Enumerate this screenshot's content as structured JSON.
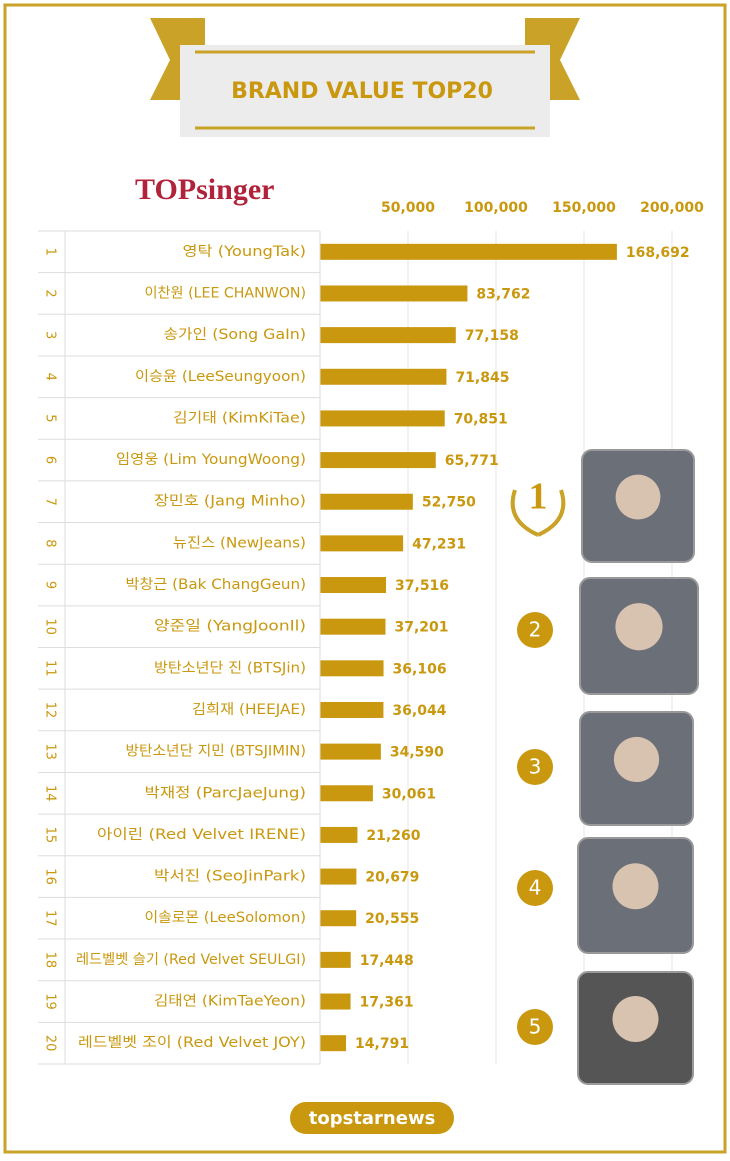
{
  "header": {
    "logo": "TOPsinger"
  },
  "chart_data": {
    "type": "bar",
    "orientation": "horizontal",
    "title": "BRAND VALUE TOP20",
    "ranks": [
      "1",
      "2",
      "3",
      "4",
      "5",
      "6",
      "7",
      "8",
      "9",
      "10",
      "11",
      "12",
      "13",
      "14",
      "15",
      "16",
      "17",
      "18",
      "19",
      "20"
    ],
    "categories": [
      "영탁 (YoungTak)",
      "이찬원 (LEE CHANWON)",
      "송가인 (Song GaIn)",
      "이승윤 (LeeSeungyoon)",
      "김기태 (KimKiTae)",
      "임영웅 (Lim YoungWoong)",
      "장민호 (Jang Minho)",
      "뉴진스 (NewJeans)",
      "박창근 (Bak ChangGeun)",
      "양준일 (YangJoonIl)",
      "방탄소년단 진 (BTSJin)",
      "김희재 (HEEJAE)",
      "방탄소년단 지민 (BTSJIMIN)",
      "박재정 (ParcJaeJung)",
      "아이린 (Red Velvet IRENE)",
      "박서진 (SeoJinPark)",
      "이솔로몬 (LeeSolomon)",
      "레드벨벳 슬기 (Red Velvet SEULGI)",
      "김태연 (KimTaeYeon)",
      "레드벨벳 조이 (Red Velvet JOY)"
    ],
    "values": [
      168692,
      83762,
      77158,
      71845,
      70851,
      65771,
      52750,
      47231,
      37516,
      37201,
      36106,
      36044,
      34590,
      30061,
      21260,
      20679,
      20555,
      17448,
      17361,
      14791
    ],
    "value_labels": [
      "168,692",
      "83,762",
      "77,158",
      "71,845",
      "70,851",
      "65,771",
      "52,750",
      "47,231",
      "37,516",
      "37,201",
      "36,106",
      "36,044",
      "34,590",
      "30,061",
      "21,260",
      "20,679",
      "20,555",
      "17,448",
      "17,361",
      "14,791"
    ],
    "color": "#c9980e",
    "xlim": [
      0,
      200000
    ],
    "xticks": [
      {
        "value": 50000,
        "label": "50,000"
      },
      {
        "value": 100000,
        "label": "100,000"
      },
      {
        "value": 150000,
        "label": "150,000"
      },
      {
        "value": 200000,
        "label": "200,000"
      }
    ],
    "grid": true
  },
  "featured_ranks": [
    "1",
    "2",
    "3",
    "4",
    "5"
  ],
  "footer": "topstarnews"
}
